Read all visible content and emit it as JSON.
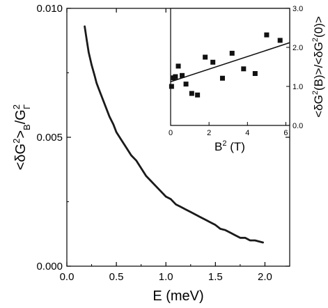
{
  "chart_data": [
    {
      "id": "main",
      "type": "line",
      "xlabel": "E (meV)",
      "ylabel": "<δG²>B/G²Γ",
      "xlim": [
        0.0,
        2.25
      ],
      "ylim": [
        0.0,
        0.01
      ],
      "x_ticks": [
        "0.0",
        "0.5",
        "1.0",
        "1.5",
        "2.0"
      ],
      "x_tick_values": [
        0.0,
        0.5,
        1.0,
        1.5,
        2.0
      ],
      "y_ticks": [
        "0.000",
        "0.005",
        "0.010"
      ],
      "y_tick_values": [
        0.0,
        0.005,
        0.01
      ],
      "grid": false,
      "series": [
        {
          "color": "#1a1a1a",
          "x": [
            0.18,
            0.2,
            0.22,
            0.25,
            0.28,
            0.3,
            0.33,
            0.36,
            0.4,
            0.43,
            0.47,
            0.5,
            0.55,
            0.6,
            0.65,
            0.7,
            0.75,
            0.8,
            0.85,
            0.9,
            0.95,
            1.0,
            1.05,
            1.1,
            1.15,
            1.2,
            1.25,
            1.3,
            1.35,
            1.4,
            1.45,
            1.5,
            1.55,
            1.6,
            1.65,
            1.7,
            1.75,
            1.8,
            1.85,
            1.9,
            1.95,
            1.98
          ],
          "y": [
            0.0093,
            0.0088,
            0.0083,
            0.0078,
            0.0074,
            0.0071,
            0.0068,
            0.0065,
            0.0061,
            0.0058,
            0.0055,
            0.0052,
            0.0049,
            0.0046,
            0.0043,
            0.0041,
            0.0038,
            0.0035,
            0.0033,
            0.0031,
            0.0029,
            0.0027,
            0.0026,
            0.0024,
            0.0023,
            0.0022,
            0.0021,
            0.002,
            0.0019,
            0.0018,
            0.0017,
            0.0016,
            0.00145,
            0.0014,
            0.0013,
            0.0012,
            0.0011,
            0.0011,
            0.001,
            0.001,
            0.00095,
            0.00092
          ]
        }
      ]
    },
    {
      "id": "inset",
      "type": "scatter",
      "xlabel": "B² (T)",
      "ylabel": "<δG²(B)>/<δG²(0)>",
      "xlim": [
        0,
        6.2
      ],
      "ylim": [
        0.0,
        3.0
      ],
      "x_ticks": [
        "0",
        "2",
        "4",
        "6"
      ],
      "x_tick_values": [
        0,
        2,
        4,
        6
      ],
      "y_ticks": [
        "0.0",
        "1.0",
        "2.0",
        "3.0"
      ],
      "y_tick_values": [
        0.0,
        1.0,
        2.0,
        3.0
      ],
      "grid": false,
      "points": {
        "x": [
          0.05,
          0.15,
          0.25,
          0.4,
          0.6,
          0.8,
          1.1,
          1.4,
          1.8,
          2.2,
          2.7,
          3.2,
          3.8,
          4.4,
          5.0,
          5.7
        ],
        "y": [
          1.0,
          1.22,
          1.25,
          1.52,
          1.28,
          1.06,
          0.82,
          0.78,
          1.75,
          1.62,
          1.21,
          1.85,
          1.45,
          1.33,
          2.32,
          2.18
        ]
      },
      "fit_line": {
        "x": [
          0,
          6.2
        ],
        "y": [
          1.12,
          2.12
        ]
      },
      "marker_color": "#111111",
      "line_color": "#111111"
    }
  ]
}
